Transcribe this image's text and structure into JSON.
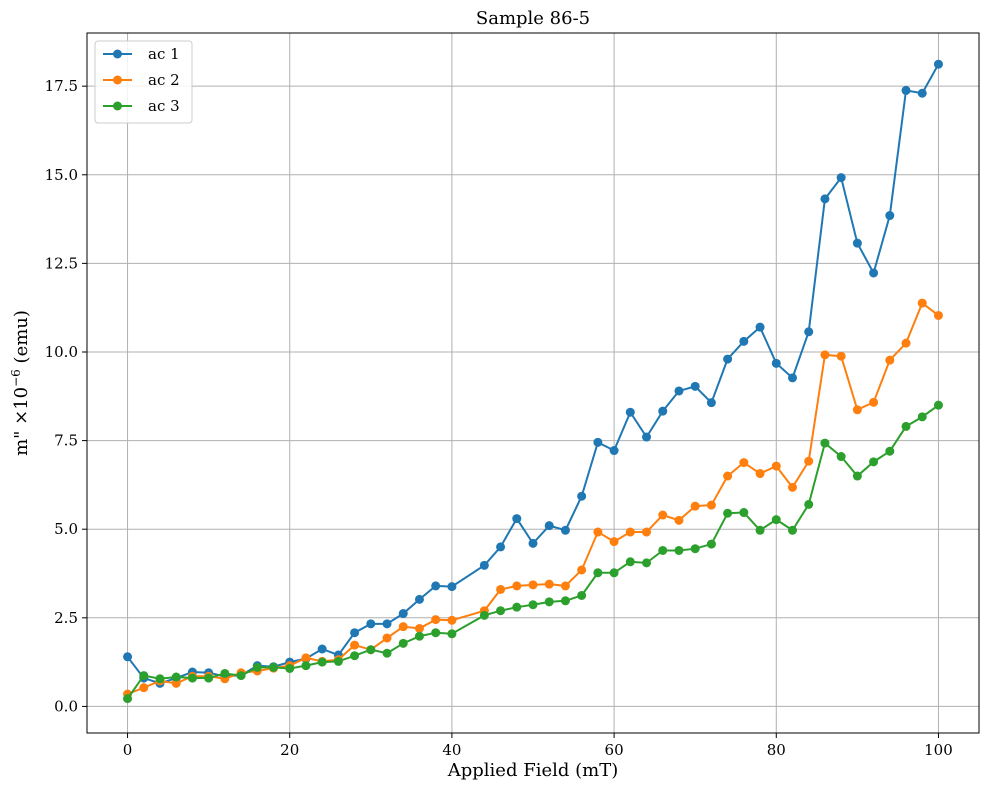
{
  "chart_data": {
    "type": "line",
    "title": "Sample 86-5",
    "xlabel": "Applied Field (mT)",
    "ylabel": "m\" ×10",
    "ylabel_exponent": "−6",
    "ylabel_unit": " (emu)",
    "xlim": [
      -5,
      105
    ],
    "ylim": [
      -0.75,
      19.0
    ],
    "x_ticks": [
      0,
      20,
      40,
      60,
      80,
      100
    ],
    "x_tick_labels": [
      "0",
      "20",
      "40",
      "60",
      "80",
      "100"
    ],
    "y_ticks": [
      0,
      2.5,
      5,
      7.5,
      10,
      12.5,
      15,
      17.5
    ],
    "y_tick_labels": [
      "0.0",
      "2.5",
      "5.0",
      "7.5",
      "10.0",
      "12.5",
      "15.0",
      "17.5"
    ],
    "grid": true,
    "legend_position": "top-left",
    "x": [
      0,
      2,
      4,
      6,
      8,
      10,
      12,
      14,
      16,
      18,
      20,
      22,
      24,
      26,
      28,
      30,
      32,
      34,
      36,
      38,
      40,
      44,
      46,
      48,
      50,
      52,
      54,
      56,
      58,
      60,
      62,
      64,
      66,
      68,
      70,
      72,
      74,
      76,
      78,
      80,
      82,
      84,
      86,
      88,
      90,
      92,
      94,
      96,
      98,
      100
    ],
    "series": [
      {
        "name": "ac 1",
        "color": "#1f77b4",
        "values": [
          1.4,
          0.8,
          0.65,
          0.8,
          0.97,
          0.95,
          0.85,
          0.88,
          1.15,
          1.12,
          1.25,
          1.35,
          1.62,
          1.45,
          2.08,
          2.33,
          2.33,
          2.62,
          3.02,
          3.4,
          3.38,
          3.98,
          4.5,
          5.3,
          4.6,
          5.1,
          4.97,
          5.93,
          7.45,
          7.22,
          8.3,
          7.6,
          8.33,
          8.9,
          9.03,
          8.57,
          9.8,
          10.3,
          10.7,
          9.68,
          9.27,
          10.57,
          14.32,
          14.92,
          13.07,
          12.23,
          13.85,
          17.38,
          17.3,
          18.12
        ]
      },
      {
        "name": "ac 2",
        "color": "#ff7f0e",
        "values": [
          0.35,
          0.53,
          0.72,
          0.65,
          0.85,
          0.85,
          0.78,
          0.95,
          1.0,
          1.08,
          1.15,
          1.37,
          1.27,
          1.32,
          1.73,
          1.6,
          1.93,
          2.25,
          2.2,
          2.45,
          2.43,
          2.7,
          3.3,
          3.4,
          3.43,
          3.45,
          3.4,
          3.85,
          4.92,
          4.65,
          4.92,
          4.92,
          5.4,
          5.25,
          5.65,
          5.68,
          6.5,
          6.88,
          6.57,
          6.78,
          6.18,
          6.92,
          9.92,
          9.88,
          8.37,
          8.58,
          9.77,
          10.25,
          11.38,
          11.03
        ]
      },
      {
        "name": "ac 3",
        "color": "#2ca02c",
        "values": [
          0.22,
          0.87,
          0.78,
          0.83,
          0.8,
          0.8,
          0.93,
          0.87,
          1.1,
          1.1,
          1.07,
          1.15,
          1.25,
          1.27,
          1.43,
          1.6,
          1.5,
          1.78,
          1.98,
          2.08,
          2.05,
          2.57,
          2.7,
          2.8,
          2.87,
          2.95,
          2.98,
          3.13,
          3.77,
          3.77,
          4.08,
          4.05,
          4.4,
          4.4,
          4.45,
          4.58,
          5.45,
          5.47,
          4.97,
          5.27,
          4.97,
          5.7,
          7.43,
          7.05,
          6.5,
          6.9,
          7.2,
          7.9,
          8.17,
          8.5
        ]
      }
    ]
  }
}
